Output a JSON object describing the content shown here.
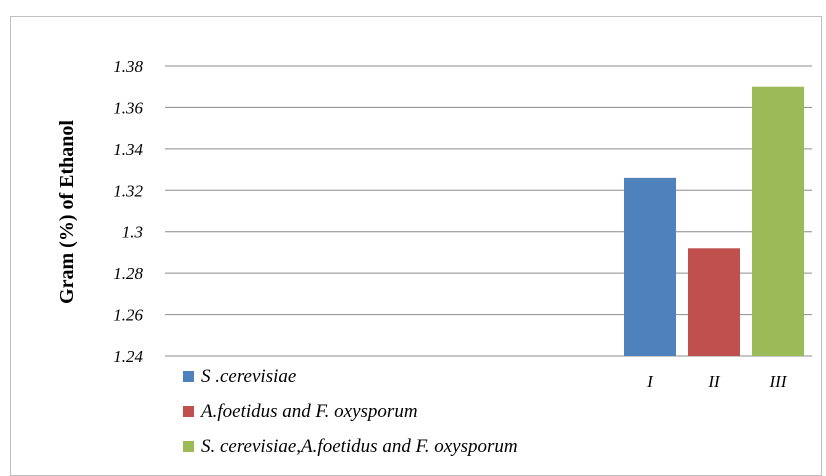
{
  "chart_data": {
    "type": "bar",
    "title": "",
    "xlabel": "",
    "ylabel": "Gram (%) of Ethanol",
    "categories": [
      "I",
      "II",
      "III"
    ],
    "values": [
      1.326,
      1.292,
      1.37
    ],
    "colors": [
      "#4F81BD",
      "#C0504D",
      "#9BBB59"
    ],
    "ylim": [
      1.24,
      1.38
    ],
    "yticks": [
      "1.24",
      "1.26",
      "1.28",
      "1.3",
      "1.32",
      "1.34",
      "1.36",
      "1.38"
    ],
    "grid": true,
    "legend": {
      "placement": "bottom-left",
      "entries": [
        "S .cerevisiae",
        "A.foetidus and F. oxysporum",
        "S. cerevisiae,A.foetidus and F. oxysporum"
      ]
    }
  }
}
